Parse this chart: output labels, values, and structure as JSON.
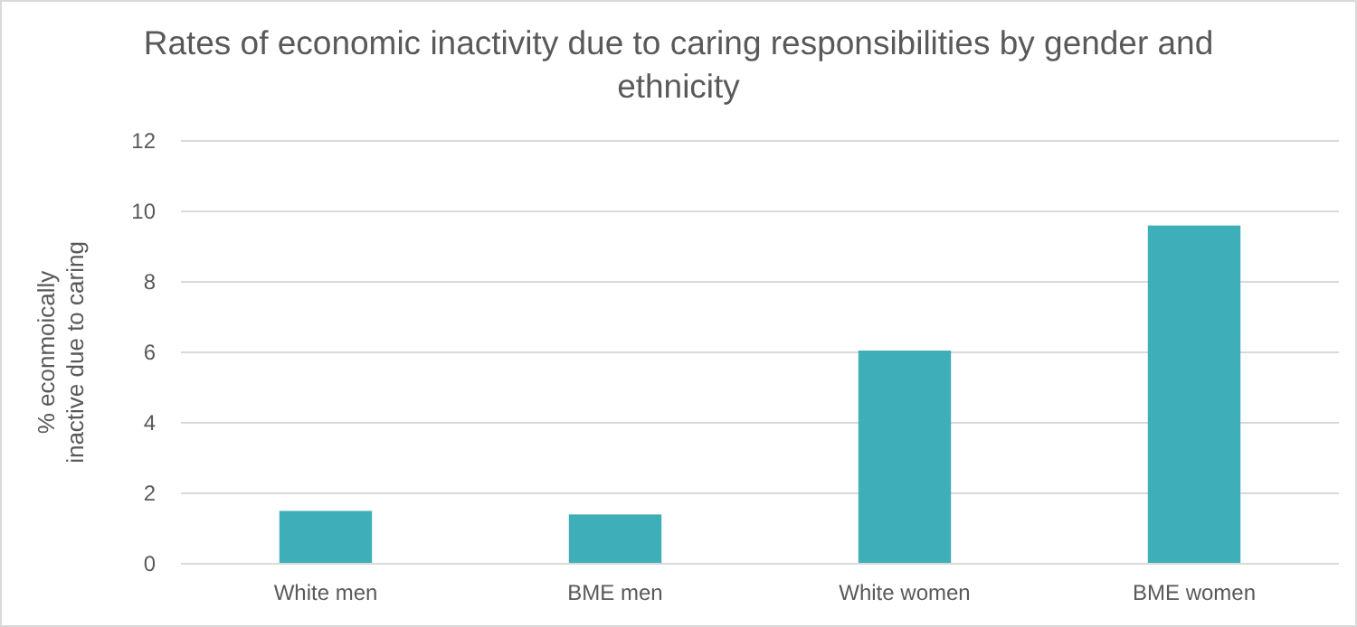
{
  "chart_data": {
    "type": "bar",
    "title": "Rates of economic inactivity due to caring responsibilities by gender and ethnicity",
    "ylabel": "% econmoically inactive due to caring",
    "categories": [
      "White men",
      "BME men",
      "White women",
      "BME women"
    ],
    "values": [
      1.5,
      1.4,
      6.05,
      9.6
    ],
    "color": "#3eafb8",
    "ylim": [
      0,
      12
    ],
    "yticks": [
      0,
      2,
      4,
      6,
      8,
      10,
      12
    ],
    "grid": "y"
  }
}
